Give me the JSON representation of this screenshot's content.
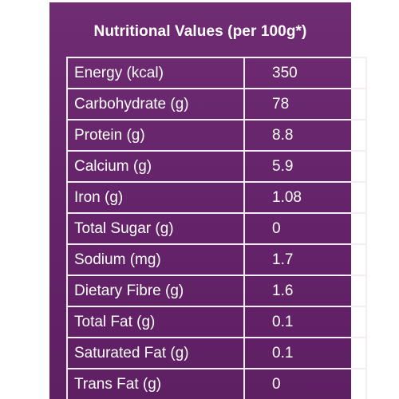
{
  "title": "Nutritional Values (per 100g*)",
  "rows": [
    {
      "label": "Energy (kcal)",
      "value": "350"
    },
    {
      "label": "Carbohydrate (g)",
      "value": "78"
    },
    {
      "label": "Protein (g)",
      "value": "8.8"
    },
    {
      "label": "Calcium (g)",
      "value": "5.9"
    },
    {
      "label": "Iron (g)",
      "value": "1.08"
    },
    {
      "label": "Total Sugar (g)",
      "value": "0"
    },
    {
      "label": "Sodium (mg)",
      "value": "1.7"
    },
    {
      "label": "Dietary Fibre (g)",
      "value": "1.6"
    },
    {
      "label": "Total Fat (g)",
      "value": "0.1"
    },
    {
      "label": "Saturated Fat (g)",
      "value": "0.1"
    },
    {
      "label": "Trans Fat (g)",
      "value": "0"
    }
  ],
  "colors": {
    "panel": "#66246a",
    "text": "#ffffff",
    "border": "#f4eef4"
  }
}
